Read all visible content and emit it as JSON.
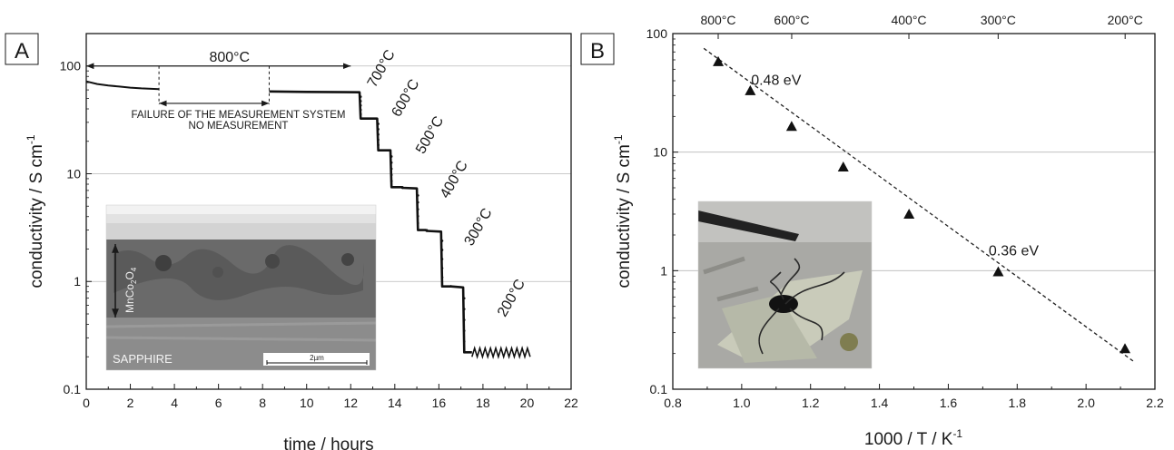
{
  "chart_data": [
    {
      "panel_label": "A",
      "type": "line",
      "xlabel": "time / hours",
      "ylabel": "conductivity / S cm",
      "ylabel_sup": "-1",
      "x_scale": "linear",
      "y_scale": "log",
      "xlim": [
        0,
        22
      ],
      "ylim": [
        0.1,
        200
      ],
      "x_ticks": [
        "0",
        "2",
        "4",
        "6",
        "8",
        "10",
        "12",
        "14",
        "16",
        "18",
        "20",
        "22"
      ],
      "y_ticks": [
        "0.1",
        "1",
        "10",
        "100"
      ],
      "grid": "horizontal at decades",
      "series": [
        {
          "x": [
            0,
            0.5,
            1,
            1.5,
            2,
            2.5,
            3.3
          ],
          "y": [
            72,
            68,
            66,
            64.5,
            63,
            62,
            61
          ]
        },
        {
          "x": [
            8.3,
            10,
            12.4,
            12.45,
            13.2,
            13.25,
            13.8,
            13.85,
            14.3,
            14.35,
            15,
            15.05,
            15.4,
            15.45,
            16.1,
            16.15,
            16.5,
            16.55,
            17.1,
            17.15,
            17.5
          ],
          "y": [
            58,
            57.5,
            57,
            32.5,
            32.5,
            16.5,
            16.5,
            7.5,
            7.5,
            7.4,
            7.3,
            3,
            3,
            2.95,
            2.9,
            0.9,
            0.9,
            0.9,
            0.88,
            0.22,
            0.22
          ]
        }
      ],
      "oscillation_band": {
        "x": [
          17.5,
          20.2
        ],
        "y": [
          0.2,
          0.24
        ]
      },
      "annotations": [
        {
          "text": "800°C",
          "x": 6.5,
          "y": 110
        },
        {
          "text": "FAILURE OF THE MEASUREMENT SYSTEM",
          "x": 6.9,
          "y": 33
        },
        {
          "text": "NO MEASUREMENT",
          "x": 6.9,
          "y": 26
        },
        {
          "text": "700°C",
          "x": 13.1,
          "y": 62
        },
        {
          "text": "600°C",
          "x": 14.2,
          "y": 33
        },
        {
          "text": "500°C",
          "x": 15.3,
          "y": 15
        },
        {
          "text": "400°C",
          "x": 16.4,
          "y": 5.8
        },
        {
          "text": "300°C",
          "x": 17.5,
          "y": 2.1
        },
        {
          "text": "200°C",
          "x": 19,
          "y": 0.46
        }
      ],
      "arrows": [
        {
          "from": [
            0,
            100
          ],
          "to": [
            12,
            100
          ]
        },
        {
          "from": [
            3.3,
            45
          ],
          "to": [
            8.3,
            45
          ]
        }
      ],
      "inset": {
        "kind": "SEM cross-section micrograph",
        "layer_label": "MnCo",
        "layer_sub1": "2",
        "layer_tail": "O",
        "layer_sub2": "4",
        "substrate_label": "SAPPHIRE",
        "scale_bar": "2µm",
        "colors": {
          "top": "#e4e4e4",
          "film": "#6c6c6c",
          "substrate": "#8e8e8e"
        }
      }
    },
    {
      "panel_label": "B",
      "type": "scatter",
      "xlabel": "1000 / T / K",
      "xlabel_sup": "-1",
      "ylabel": "conductivity / S cm",
      "ylabel_sup": "-1",
      "x_scale": "linear",
      "y_scale": "log",
      "xlim": [
        0.8,
        2.2
      ],
      "ylim": [
        0.1,
        100
      ],
      "x_ticks": [
        "0.8",
        "1.0",
        "1.2",
        "1.4",
        "1.6",
        "1.8",
        "2.0",
        "2.2"
      ],
      "y_ticks": [
        "0.1",
        "1",
        "10",
        "100"
      ],
      "top_axis_ticks": [
        "800°C",
        "600°C",
        "400°C",
        "300°C",
        "200°C"
      ],
      "grid": "horizontal at decades",
      "points": {
        "x": [
          0.932,
          1.025,
          1.145,
          1.295,
          1.486,
          1.745,
          2.113
        ],
        "y": [
          58,
          33,
          16.5,
          7.5,
          3,
          0.98,
          0.22
        ]
      },
      "fit_line": {
        "x": [
          0.89,
          2.14
        ],
        "y": [
          75,
          0.17
        ]
      },
      "annotations": [
        {
          "text": "0.48 eV",
          "x": 1.1,
          "y": 37
        },
        {
          "text": "0.36 eV",
          "x": 1.79,
          "y": 1.35
        }
      ],
      "inset": {
        "kind": "photograph of sample with wires",
        "colors": {
          "background": "#a9a9a5",
          "substrate": "#c9cbba",
          "electrode": "#121212"
        }
      }
    }
  ]
}
